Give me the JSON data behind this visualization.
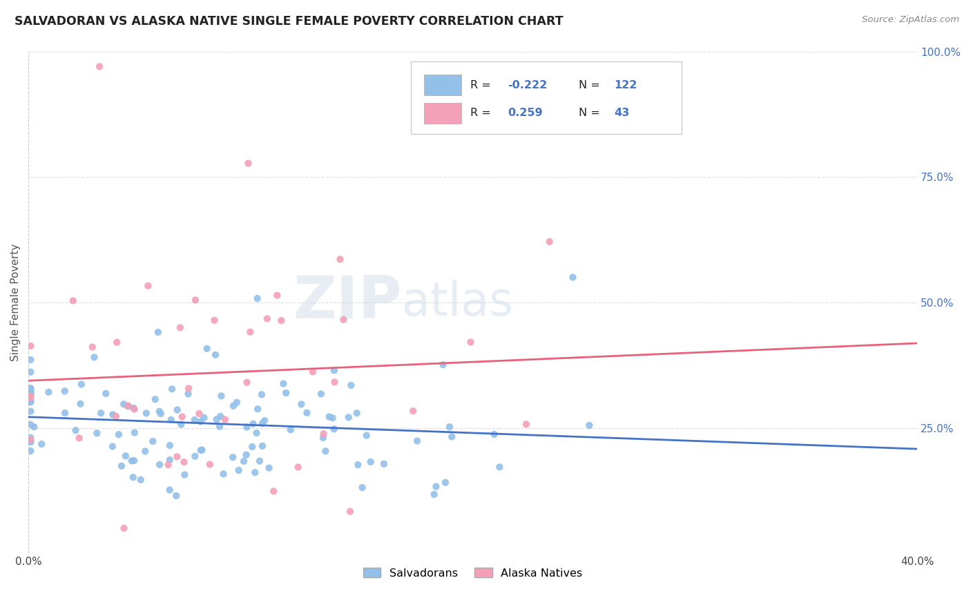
{
  "title": "SALVADORAN VS ALASKA NATIVE SINGLE FEMALE POVERTY CORRELATION CHART",
  "source": "Source: ZipAtlas.com",
  "ylabel": "Single Female Poverty",
  "R_blue": -0.222,
  "N_blue": 122,
  "R_pink": 0.259,
  "N_pink": 43,
  "blue_color": "#92C0E8",
  "pink_color": "#F4A0B8",
  "blue_line_color": "#4472C4",
  "pink_line_color": "#E8607A",
  "watermark_color": "#D8E4F0",
  "background_color": "#FFFFFF",
  "grid_color": "#DDDDDD",
  "title_color": "#222222",
  "source_color": "#888888",
  "tick_color_right": "#4472C4",
  "xlim": [
    0.0,
    40.0
  ],
  "ylim": [
    0.0,
    100.0
  ]
}
